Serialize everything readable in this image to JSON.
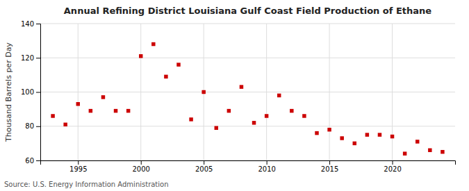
{
  "chart_data": {
    "type": "scatter",
    "title": "Annual Refining District Louisiana Gulf Coast Field Production of Ethane",
    "ylabel": "Thousand Barrels per Day",
    "annotations": [
      "Source: U.S. Energy Information Administration"
    ],
    "x": [
      1993,
      1994,
      1995,
      1996,
      1997,
      1998,
      1999,
      2000,
      2001,
      2002,
      2003,
      2004,
      2005,
      2006,
      2007,
      2008,
      2009,
      2010,
      2011,
      2012,
      2013,
      2014,
      2015,
      2016,
      2017,
      2018,
      2019,
      2020,
      2021,
      2022,
      2023,
      2024
    ],
    "values": [
      86,
      81,
      93,
      89,
      97,
      89,
      89,
      121,
      128,
      109,
      116,
      84,
      100,
      79,
      89,
      103,
      82,
      86,
      98,
      89,
      86,
      76,
      78,
      73,
      70,
      75,
      75,
      74,
      64,
      71,
      66,
      65
    ],
    "color": "#cc0000",
    "marker": "square",
    "xlim": [
      1992,
      2025
    ],
    "ylim": [
      60,
      140
    ],
    "xticks": [
      1995,
      2000,
      2005,
      2010,
      2015,
      2020
    ],
    "yticks": [
      60,
      80,
      100,
      120,
      140
    ],
    "grid": true
  }
}
